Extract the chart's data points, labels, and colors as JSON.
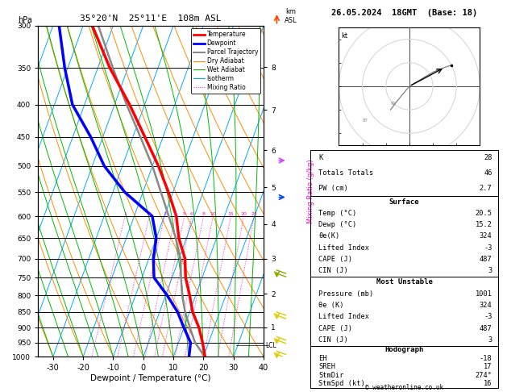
{
  "title_left": "35°20'N  25°11'E  108m ASL",
  "title_right": "26.05.2024  18GMT  (Base: 18)",
  "xlabel": "Dewpoint / Temperature (°C)",
  "pressure_ticks": [
    300,
    350,
    400,
    450,
    500,
    550,
    600,
    650,
    700,
    750,
    800,
    850,
    900,
    950,
    1000
  ],
  "xlim": [
    -35,
    40
  ],
  "xticks": [
    -30,
    -20,
    -10,
    0,
    10,
    20,
    30,
    40
  ],
  "temp_color": "#ff0000",
  "dewpoint_color": "#0000ff",
  "parcel_color": "#888888",
  "dry_adiabat_color": "#ff8c00",
  "wet_adiabat_color": "#00bb00",
  "isotherm_color": "#00aaff",
  "mixing_ratio_color": "#ff00cc",
  "bg_color": "#ffffff",
  "panel_bg": "#c8c8c8",
  "legend_items": [
    {
      "label": "Temperature",
      "color": "#ff0000",
      "lw": 2.0,
      "ls": "-"
    },
    {
      "label": "Dewpoint",
      "color": "#0000ff",
      "lw": 2.0,
      "ls": "-"
    },
    {
      "label": "Parcel Trajectory",
      "color": "#888888",
      "lw": 1.5,
      "ls": "-"
    },
    {
      "label": "Dry Adiabat",
      "color": "#ff8c00",
      "lw": 0.8,
      "ls": "-"
    },
    {
      "label": "Wet Adiabat",
      "color": "#00bb00",
      "lw": 0.8,
      "ls": "-"
    },
    {
      "label": "Isotherm",
      "color": "#00aaff",
      "lw": 0.8,
      "ls": "-"
    },
    {
      "label": "Mixing Ratio",
      "color": "#ff00cc",
      "lw": 0.7,
      "ls": ":"
    }
  ],
  "temperature_data": {
    "pressure": [
      1000,
      950,
      900,
      850,
      800,
      750,
      700,
      650,
      600,
      550,
      500,
      450,
      400,
      350,
      300
    ],
    "temp": [
      20.5,
      18.0,
      15.0,
      11.0,
      8.0,
      4.5,
      2.0,
      -2.5,
      -6.0,
      -11.5,
      -18.0,
      -26.0,
      -35.0,
      -46.0,
      -57.0
    ]
  },
  "dewpoint_data": {
    "pressure": [
      1000,
      950,
      900,
      850,
      800,
      750,
      700,
      650,
      600,
      550,
      500,
      450,
      400,
      350,
      300
    ],
    "temp": [
      15.2,
      14.0,
      10.0,
      6.0,
      0.5,
      -6.0,
      -8.5,
      -10.0,
      -14.0,
      -26.0,
      -36.0,
      -44.0,
      -54.0,
      -61.0,
      -68.0
    ]
  },
  "parcel_data": {
    "pressure": [
      1000,
      960,
      950,
      900,
      850,
      800,
      750,
      700,
      650,
      600,
      550,
      500,
      450,
      400,
      350,
      300
    ],
    "temp": [
      20.5,
      16.5,
      15.5,
      12.0,
      8.5,
      5.5,
      3.0,
      0.5,
      -3.5,
      -8.5,
      -14.0,
      -20.0,
      -27.5,
      -36.0,
      -45.0,
      -55.0
    ]
  },
  "km_ticks": [
    1,
    2,
    3,
    4,
    5,
    6,
    7,
    8
  ],
  "km_pressures": [
    899,
    795,
    700,
    617,
    540,
    472,
    408,
    349
  ],
  "lcl_pressure": 960,
  "mixing_ratio_lines": [
    1,
    2,
    3,
    4,
    5,
    6,
    8,
    10,
    15,
    20,
    25
  ],
  "stats_rows": [
    [
      "K",
      "28"
    ],
    [
      "Totals Totals",
      "46"
    ],
    [
      "PW (cm)",
      "2.7"
    ]
  ],
  "surface_title": "Surface",
  "surface_rows": [
    [
      "Temp (°C)",
      "20.5"
    ],
    [
      "Dewp (°C)",
      "15.2"
    ],
    [
      "θe(K)",
      "324"
    ],
    [
      "Lifted Index",
      "-3"
    ],
    [
      "CAPE (J)",
      "487"
    ],
    [
      "CIN (J)",
      "3"
    ]
  ],
  "unstable_title": "Most Unstable",
  "unstable_rows": [
    [
      "Pressure (mb)",
      "1001"
    ],
    [
      "θe (K)",
      "324"
    ],
    [
      "Lifted Index",
      "-3"
    ],
    [
      "CAPE (J)",
      "487"
    ],
    [
      "CIN (J)",
      "3"
    ]
  ],
  "hodo_title": "Hodograph",
  "hodo_rows": [
    [
      "EH",
      "-18"
    ],
    [
      "SREH",
      "17"
    ],
    [
      "StmDir",
      "274°"
    ],
    [
      "StmSpd (kt)",
      "16"
    ]
  ],
  "copyright": "© weatheronline.co.uk",
  "wind_barbs": [
    {
      "pressure": 300,
      "color": "#ff4400",
      "type": "barb_up"
    },
    {
      "pressure": 500,
      "color": "#8866ff",
      "type": "barb_side"
    },
    {
      "pressure": 600,
      "color": "#0066ff",
      "type": "barb_side"
    },
    {
      "pressure": 750,
      "color": "#88aa00",
      "type": "barb_down"
    },
    {
      "pressure": 850,
      "color": "#ddcc00",
      "type": "barb_down"
    },
    {
      "pressure": 950,
      "color": "#ddcc00",
      "type": "barb_down"
    }
  ]
}
